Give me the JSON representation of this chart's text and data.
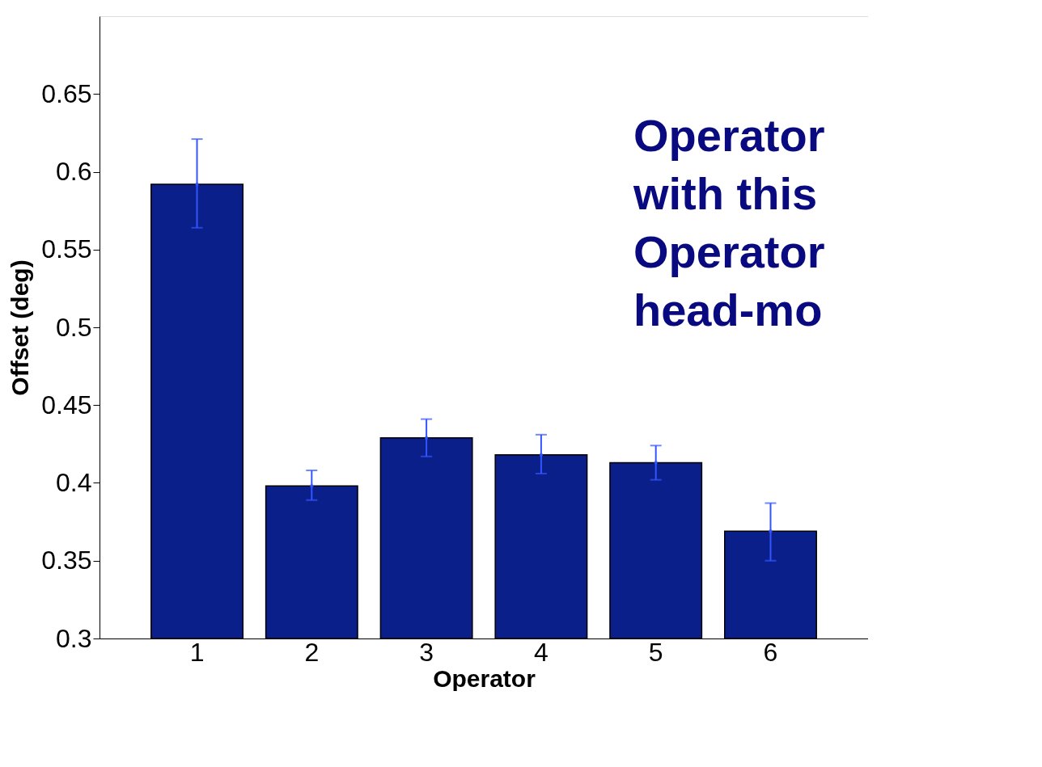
{
  "chart_data": {
    "type": "bar",
    "xlabel": "Operator",
    "ylabel": "Offset (deg)",
    "categories": [
      "1",
      "2",
      "3",
      "4",
      "5",
      "6"
    ],
    "values": [
      0.592,
      0.398,
      0.429,
      0.418,
      0.413,
      0.369
    ],
    "errors": [
      [
        0.564,
        0.621
      ],
      [
        0.389,
        0.408
      ],
      [
        0.417,
        0.441
      ],
      [
        0.406,
        0.431
      ],
      [
        0.402,
        0.424
      ],
      [
        0.35,
        0.387
      ]
    ],
    "color": "#0a1f8a",
    "ylim": [
      0.3,
      0.7
    ],
    "yticks": [
      0.3,
      0.35,
      0.4,
      0.45,
      0.5,
      0.55,
      0.6,
      0.65
    ],
    "grid": false,
    "annotations": [
      "Operator",
      "with this",
      "Operator",
      "head-mo"
    ]
  }
}
